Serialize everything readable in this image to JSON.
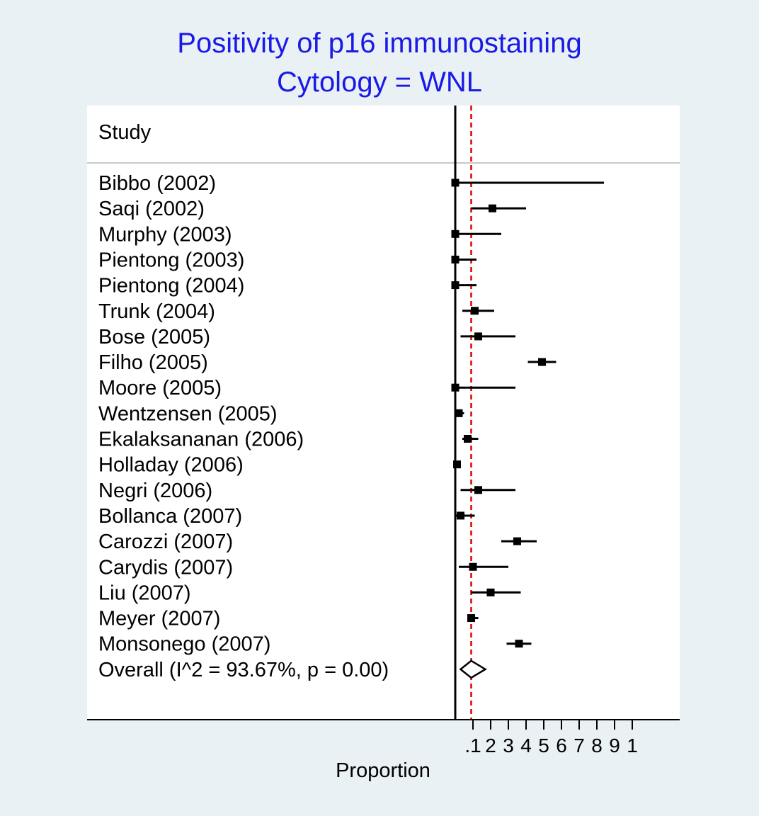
{
  "chart_data": {
    "type": "forest",
    "title": "Positivity of p16 immunostaining",
    "subtitle": "Cytology = WNL",
    "column_header": "Study",
    "xlabel": "Proportion",
    "xlim": [
      0,
      1
    ],
    "tick_labels": [
      ".1",
      "2",
      "3",
      "4",
      "5",
      "6",
      "7",
      "8",
      "9",
      "1"
    ],
    "tick_values": [
      0.1,
      0.2,
      0.3,
      0.4,
      0.5,
      0.6,
      0.7,
      0.8,
      0.9,
      1.0
    ],
    "studies": [
      {
        "label": "Bibbo (2002)",
        "est": 0.0,
        "lo": 0.0,
        "hi": 0.84
      },
      {
        "label": "Saqi (2002)",
        "est": 0.21,
        "lo": 0.09,
        "hi": 0.4
      },
      {
        "label": "Murphy (2003)",
        "est": 0.0,
        "lo": 0.0,
        "hi": 0.26
      },
      {
        "label": "Pientong (2003)",
        "est": 0.0,
        "lo": 0.0,
        "hi": 0.12
      },
      {
        "label": "Pientong (2004)",
        "est": 0.0,
        "lo": 0.0,
        "hi": 0.12
      },
      {
        "label": "Trunk (2004)",
        "est": 0.11,
        "lo": 0.04,
        "hi": 0.22
      },
      {
        "label": "Bose (2005)",
        "est": 0.13,
        "lo": 0.03,
        "hi": 0.34
      },
      {
        "label": "Filho (2005)",
        "est": 0.49,
        "lo": 0.41,
        "hi": 0.57
      },
      {
        "label": "Moore (2005)",
        "est": 0.0,
        "lo": 0.0,
        "hi": 0.34
      },
      {
        "label": "Wentzensen (2005)",
        "est": 0.02,
        "lo": 0.0,
        "hi": 0.05
      },
      {
        "label": "Ekalaksananan (2006)",
        "est": 0.07,
        "lo": 0.04,
        "hi": 0.13
      },
      {
        "label": "Holladay (2006)",
        "est": 0.01,
        "lo": 0.0,
        "hi": 0.03
      },
      {
        "label": "Negri (2006)",
        "est": 0.13,
        "lo": 0.03,
        "hi": 0.34
      },
      {
        "label": "Bollanca (2007)",
        "est": 0.03,
        "lo": 0.0,
        "hi": 0.11
      },
      {
        "label": "Carozzi (2007)",
        "est": 0.35,
        "lo": 0.26,
        "hi": 0.46
      },
      {
        "label": "Carydis (2007)",
        "est": 0.1,
        "lo": 0.02,
        "hi": 0.3
      },
      {
        "label": "Liu (2007)",
        "est": 0.2,
        "lo": 0.09,
        "hi": 0.37
      },
      {
        "label": "Meyer (2007)",
        "est": 0.09,
        "lo": 0.07,
        "hi": 0.13
      },
      {
        "label": "Monsonego (2007)",
        "est": 0.36,
        "lo": 0.29,
        "hi": 0.43
      }
    ],
    "overall": {
      "label": "Overall  (I^2 = 93.67%, p = 0.00)",
      "est": 0.09,
      "lo": 0.03,
      "hi": 0.17
    },
    "null_line": 0,
    "colors": {
      "title": "#1a1ae6",
      "background": "#eaf1f4",
      "panel": "#ffffff",
      "reference_line": "#e00000",
      "marks": "#000000"
    }
  }
}
